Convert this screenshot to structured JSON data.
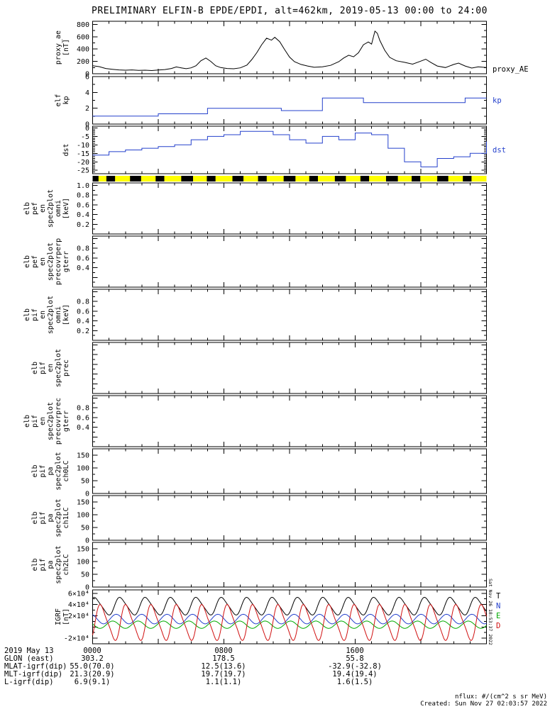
{
  "title": "PRELIMINARY ELFIN-B EPDE/EPDI, alt=462km, 2019-05-13 00:00 to 24:00",
  "side_note": "Sat Nov 26 18:53:37 2022",
  "footer": {
    "nflux": "nflux: #/(cm^2 s sr MeV)",
    "created": "Created: Sun Nov 27 02:03:57 2022"
  },
  "time_axis": {
    "start": "00:00",
    "end": "24:00",
    "major_label_hours": [
      0,
      8,
      16
    ],
    "labels": [
      "0000",
      "0800",
      "1600"
    ],
    "minor_tick_hours": 1
  },
  "orbit_bar": {
    "color": "#ffff00",
    "dashes": [
      [
        0.0,
        0.015
      ],
      [
        0.035,
        0.022
      ],
      [
        0.095,
        0.028
      ],
      [
        0.16,
        0.022
      ],
      [
        0.225,
        0.03
      ],
      [
        0.29,
        0.022
      ],
      [
        0.355,
        0.028
      ],
      [
        0.42,
        0.022
      ],
      [
        0.485,
        0.03
      ],
      [
        0.55,
        0.022
      ],
      [
        0.615,
        0.028
      ],
      [
        0.68,
        0.022
      ],
      [
        0.745,
        0.03
      ],
      [
        0.81,
        0.022
      ],
      [
        0.875,
        0.028
      ],
      [
        0.94,
        0.022
      ]
    ]
  },
  "chart_data": [
    {
      "name": "proxy_ae",
      "type": "line",
      "ylabel_lines": [
        "proxy_ae",
        "[nT]"
      ],
      "right_label": {
        "text": "proxy_AE",
        "color": "#000000",
        "pos": "bottom"
      },
      "ylim": [
        0,
        850
      ],
      "yminor": 100,
      "yticks": [
        {
          "v": 0,
          "label": "0"
        },
        {
          "v": 200,
          "label": "200"
        },
        {
          "v": 400,
          "label": "400"
        },
        {
          "v": 600,
          "label": "600"
        },
        {
          "v": 800,
          "label": "800"
        }
      ],
      "series": [
        {
          "name": "proxy_AE",
          "type": "line",
          "color": "#000000",
          "points": [
            [
              0,
              130
            ],
            [
              0.4,
              115
            ],
            [
              0.8,
              85
            ],
            [
              1.2,
              72
            ],
            [
              1.6,
              62
            ],
            [
              2,
              58
            ],
            [
              2.4,
              62
            ],
            [
              2.8,
              55
            ],
            [
              3.2,
              58
            ],
            [
              3.6,
              52
            ],
            [
              4,
              60
            ],
            [
              4.4,
              68
            ],
            [
              4.8,
              85
            ],
            [
              5.1,
              110
            ],
            [
              5.4,
              95
            ],
            [
              5.7,
              82
            ],
            [
              6,
              95
            ],
            [
              6.3,
              130
            ],
            [
              6.6,
              210
            ],
            [
              6.9,
              255
            ],
            [
              7.2,
              200
            ],
            [
              7.5,
              130
            ],
            [
              7.8,
              100
            ],
            [
              8.2,
              85
            ],
            [
              8.6,
              80
            ],
            [
              9,
              95
            ],
            [
              9.4,
              140
            ],
            [
              9.7,
              230
            ],
            [
              10,
              340
            ],
            [
              10.3,
              470
            ],
            [
              10.6,
              575
            ],
            [
              10.9,
              545
            ],
            [
              11.1,
              590
            ],
            [
              11.4,
              520
            ],
            [
              11.7,
              390
            ],
            [
              12,
              270
            ],
            [
              12.3,
              195
            ],
            [
              12.7,
              150
            ],
            [
              13.1,
              125
            ],
            [
              13.5,
              105
            ],
            [
              14,
              112
            ],
            [
              14.5,
              135
            ],
            [
              15,
              195
            ],
            [
              15.3,
              255
            ],
            [
              15.6,
              300
            ],
            [
              15.9,
              275
            ],
            [
              16.2,
              340
            ],
            [
              16.5,
              470
            ],
            [
              16.8,
              515
            ],
            [
              17,
              480
            ],
            [
              17.2,
              690
            ],
            [
              17.35,
              655
            ],
            [
              17.5,
              540
            ],
            [
              17.8,
              380
            ],
            [
              18.1,
              265
            ],
            [
              18.5,
              210
            ],
            [
              19,
              185
            ],
            [
              19.5,
              155
            ],
            [
              20,
              205
            ],
            [
              20.3,
              235
            ],
            [
              20.6,
              185
            ],
            [
              21,
              125
            ],
            [
              21.5,
              100
            ],
            [
              22,
              150
            ],
            [
              22.3,
              172
            ],
            [
              22.7,
              125
            ],
            [
              23.1,
              92
            ],
            [
              23.5,
              112
            ],
            [
              24,
              100
            ]
          ]
        }
      ]
    },
    {
      "name": "kp",
      "type": "step",
      "ylabel_lines": [
        "elf",
        "kp"
      ],
      "right_label": {
        "text": "kp",
        "color": "#2440cc",
        "pos": "mid"
      },
      "ylim": [
        0,
        6
      ],
      "yminor": 1,
      "yticks": [
        {
          "v": 0,
          "label": "0"
        },
        {
          "v": 2,
          "label": "2"
        },
        {
          "v": 4,
          "label": "4"
        },
        {
          "v": 6,
          "label": "6"
        }
      ],
      "series": [
        {
          "name": "kp",
          "type": "step",
          "color": "#2440cc",
          "points": [
            [
              0,
              1.0
            ],
            [
              4,
              1.3
            ],
            [
              7,
              2.0
            ],
            [
              11.5,
              1.7
            ],
            [
              14,
              3.3
            ],
            [
              16.5,
              2.7
            ],
            [
              22.7,
              3.3
            ],
            [
              24,
              3.3
            ]
          ]
        }
      ]
    },
    {
      "name": "dst",
      "type": "step",
      "ylabel_lines": [
        "dst"
      ],
      "right_label": {
        "text": "dst",
        "color": "#2440cc",
        "pos": "mid"
      },
      "ylim": [
        -27,
        1
      ],
      "yminor": 1,
      "yticks": [
        {
          "v": 0,
          "label": "0"
        },
        {
          "v": -5,
          "label": "-5"
        },
        {
          "v": -10,
          "label": "-10"
        },
        {
          "v": -15,
          "label": "-15"
        },
        {
          "v": -20,
          "label": "-20"
        },
        {
          "v": -25,
          "label": "-25"
        }
      ],
      "series": [
        {
          "name": "dst",
          "type": "step",
          "color": "#2440cc",
          "hourly": [
            -16,
            -14,
            -13,
            -12,
            -11,
            -10,
            -7,
            -5,
            -4,
            -2,
            -2,
            -4,
            -7,
            -9,
            -5,
            -7,
            -3,
            -4,
            -12,
            -20,
            -23,
            -18,
            -17,
            -15,
            -8
          ]
        }
      ]
    },
    {
      "name": "elb_pef_en_spec2plot_omni",
      "type": "empty",
      "ylabel_lines": [
        "elb",
        "pef",
        "en",
        "spec2plot",
        "omni",
        "[keV]"
      ],
      "ylim": [
        0,
        1.05
      ],
      "yminor": 0.1,
      "yticks": [
        {
          "v": 1.0,
          "label": "1.0"
        },
        {
          "v": 0.8,
          "label": "0.8"
        },
        {
          "v": 0.6,
          "label": "0.6"
        },
        {
          "v": 0.4,
          "label": "0.4"
        },
        {
          "v": 0.2,
          "label": "0.2"
        }
      ],
      "series": []
    },
    {
      "name": "elb_pef_en_spec2plot_precovrperp_gterr",
      "type": "empty",
      "ylabel_lines": [
        "elb",
        "pef",
        "en",
        "spec2plot",
        "precovrperp",
        "gterr"
      ],
      "ylim": [
        0,
        1.05
      ],
      "yminor": 0.1,
      "yticks": [
        {
          "v": 1.0,
          "label": ""
        },
        {
          "v": 0.8,
          "label": "0.8"
        },
        {
          "v": 0.6,
          "label": "0.6"
        },
        {
          "v": 0.4,
          "label": "0.4"
        },
        {
          "v": 0.2,
          "label": ""
        }
      ],
      "series": []
    },
    {
      "name": "elb_pif_en_spec2plot_omni",
      "type": "empty",
      "ylabel_lines": [
        "elb",
        "pif",
        "en",
        "spec2plot",
        "omni",
        "[keV]"
      ],
      "ylim": [
        0,
        1.05
      ],
      "yminor": 0.1,
      "yticks": [
        {
          "v": 1.0,
          "label": ""
        },
        {
          "v": 0.8,
          "label": "0.8"
        },
        {
          "v": 0.6,
          "label": "0.6"
        },
        {
          "v": 0.4,
          "label": "0.4"
        },
        {
          "v": 0.2,
          "label": "0.2"
        }
      ],
      "series": []
    },
    {
      "name": "elb_pif_en_spec2plot_prec",
      "type": "empty",
      "ylabel_lines": [
        "elb",
        "pif",
        "en",
        "spec2plot",
        "prec"
      ],
      "ylim": [
        0,
        1.05
      ],
      "yminor": 0.1,
      "yticks": [
        {
          "v": 1.0,
          "label": ""
        },
        {
          "v": 0.8,
          "label": ""
        },
        {
          "v": 0.6,
          "label": ""
        },
        {
          "v": 0.4,
          "label": ""
        },
        {
          "v": 0.2,
          "label": ""
        }
      ],
      "series": []
    },
    {
      "name": "elb_pif_en_spec2plot_precovrprec_gterr",
      "type": "empty",
      "ylabel_lines": [
        "elb",
        "pif",
        "en",
        "spec2plot",
        "precovrprec",
        "gterr"
      ],
      "ylim": [
        0,
        1.05
      ],
      "yminor": 0.1,
      "yticks": [
        {
          "v": 1.0,
          "label": ""
        },
        {
          "v": 0.8,
          "label": "0.8"
        },
        {
          "v": 0.6,
          "label": "0.6"
        },
        {
          "v": 0.4,
          "label": "0.4"
        },
        {
          "v": 0.2,
          "label": ""
        }
      ],
      "series": []
    },
    {
      "name": "elb_pif_pa_spec2plot_ch0LC",
      "type": "empty",
      "ylabel_lines": [
        "elb",
        "pif",
        "pa",
        "spec2plot",
        "ch0LC"
      ],
      "ylim": [
        0,
        175
      ],
      "yminor": 25,
      "yticks": [
        {
          "v": 150,
          "label": "150"
        },
        {
          "v": 100,
          "label": "100"
        },
        {
          "v": 50,
          "label": "50"
        },
        {
          "v": 0,
          "label": "0"
        }
      ],
      "series": []
    },
    {
      "name": "elb_pif_pa_spec2plot_ch1LC",
      "type": "empty",
      "ylabel_lines": [
        "elb",
        "pif",
        "pa",
        "spec2plot",
        "ch1LC"
      ],
      "ylim": [
        0,
        175
      ],
      "yminor": 25,
      "yticks": [
        {
          "v": 150,
          "label": "150"
        },
        {
          "v": 100,
          "label": "100"
        },
        {
          "v": 50,
          "label": "50"
        },
        {
          "v": 0,
          "label": "0"
        }
      ],
      "series": []
    },
    {
      "name": "elb_pif_pa_spec2plot_ch2LC",
      "type": "empty",
      "ylabel_lines": [
        "elb",
        "pif",
        "pa",
        "spec2plot",
        "ch2LC"
      ],
      "ylim": [
        0,
        175
      ],
      "yminor": 25,
      "yticks": [
        {
          "v": 150,
          "label": "150"
        },
        {
          "v": 100,
          "label": "100"
        },
        {
          "v": 50,
          "label": "50"
        },
        {
          "v": 0,
          "label": "0"
        }
      ],
      "series": []
    },
    {
      "name": "igrf",
      "type": "line",
      "ylabel_lines": [
        "IGRF",
        "[nT]"
      ],
      "ylim": [
        -30000,
        66000
      ],
      "yminor": 10000,
      "yticks": [
        {
          "v": 60000,
          "label": "6×10⁴"
        },
        {
          "v": 40000,
          "label": "4×10⁴"
        },
        {
          "v": 20000,
          "label": "2×10⁴"
        },
        {
          "v": 0,
          "label": ""
        },
        {
          "v": -20000,
          "label": "-2×10⁴"
        }
      ],
      "legend": [
        {
          "text": "T",
          "color": "#000000"
        },
        {
          "text": "N",
          "color": "#2440cc"
        },
        {
          "text": "E",
          "color": "#00aa00"
        },
        {
          "text": "D",
          "color": "#d01010"
        }
      ],
      "series": [
        {
          "name": "T",
          "type": "osc",
          "color": "#000000",
          "mean": 37000,
          "amp": 15000,
          "amp2": 2500,
          "period": 1.548,
          "phase": 0.9
        },
        {
          "name": "N",
          "type": "osc",
          "color": "#2440cc",
          "mean": 14000,
          "amp": 8500,
          "amp2": 0,
          "period": 1.548,
          "phase": 2.0
        },
        {
          "name": "E",
          "type": "osc",
          "color": "#00aa00",
          "mean": 4000,
          "amp": 6500,
          "amp2": 0,
          "period": 1.548,
          "phase": 2.9
        },
        {
          "name": "D",
          "type": "osc",
          "color": "#d01010",
          "mean": 8000,
          "amp": 30000,
          "amp2": 6000,
          "period": 1.548,
          "phase": -0.6
        }
      ]
    }
  ],
  "ephemeris_table": {
    "rows": [
      {
        "label": "2019 May 13",
        "values": [
          "0000",
          "0800",
          "1600"
        ]
      },
      {
        "label": "GLON (east)",
        "values": [
          "303.2",
          "178.5",
          "55.8"
        ]
      },
      {
        "label": "MLAT-igrf(dip)",
        "values": [
          "55.0(70.0)",
          "12.5(13.6)",
          "-32.9(-32.8)"
        ]
      },
      {
        "label": "MLT-igrf(dip)",
        "values": [
          "21.3(20.9)",
          "19.7(19.7)",
          "19.4(19.4)"
        ]
      },
      {
        "label": "L-igrf(dip)",
        "values": [
          "6.9(9.1)",
          "1.1(1.1)",
          "1.6(1.5)"
        ]
      }
    ]
  }
}
